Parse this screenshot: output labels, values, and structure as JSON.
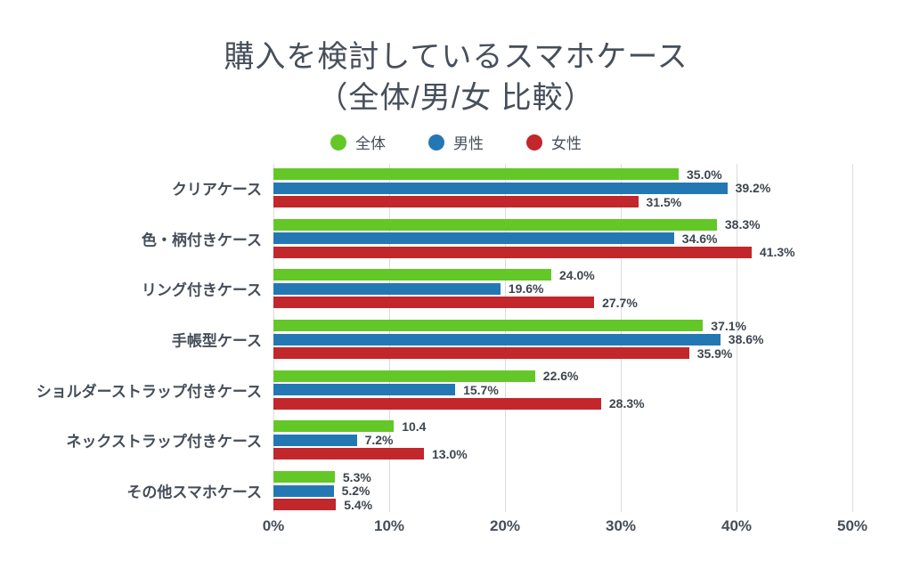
{
  "title": {
    "line1": "購入を検討しているスマホケース",
    "line2": "（全体/男/女 比較）"
  },
  "legend": [
    {
      "label": "全体",
      "color": "#64c728"
    },
    {
      "label": "男性",
      "color": "#2378b4"
    },
    {
      "label": "女性",
      "color": "#c1272b"
    }
  ],
  "chart_data": {
    "type": "bar",
    "orientation": "horizontal",
    "title": "購入を検討しているスマホケース（全体/男/女 比較）",
    "categories": [
      "クリアケース",
      "色・柄付きケース",
      "リング付きケース",
      "手帳型ケース",
      "ショルダーストラップ付きケース",
      "ネックストラップ付きケース",
      "その他スマホケース"
    ],
    "series": [
      {
        "name": "全体",
        "color": "#64c728",
        "values": [
          35.0,
          38.3,
          24.0,
          37.1,
          22.6,
          10.4,
          5.3
        ],
        "labels": [
          "35.0%",
          "38.3%",
          "24.0%",
          "37.1%",
          "22.6%",
          "10.4",
          "5.3%"
        ]
      },
      {
        "name": "男性",
        "color": "#2378b4",
        "values": [
          39.2,
          34.6,
          19.6,
          38.6,
          15.7,
          7.2,
          5.2
        ],
        "labels": [
          "39.2%",
          "34.6%",
          "19.6%",
          "38.6%",
          "15.7%",
          "7.2%",
          "5.2%"
        ]
      },
      {
        "name": "女性",
        "color": "#c1272b",
        "values": [
          31.5,
          41.3,
          27.7,
          35.9,
          28.3,
          13.0,
          5.4
        ],
        "labels": [
          "31.5%",
          "41.3%",
          "27.7%",
          "35.9%",
          "28.3%",
          "13.0%",
          "5.4%"
        ]
      }
    ],
    "xlabel": "",
    "ylabel": "",
    "x_ticks": [
      "0%",
      "10%",
      "20%",
      "30%",
      "40%",
      "50%"
    ],
    "xlim": [
      0,
      50
    ],
    "grid": true,
    "grid_color": "#dbdbdb",
    "legend_position": "top",
    "value_labels": "outside-end"
  }
}
